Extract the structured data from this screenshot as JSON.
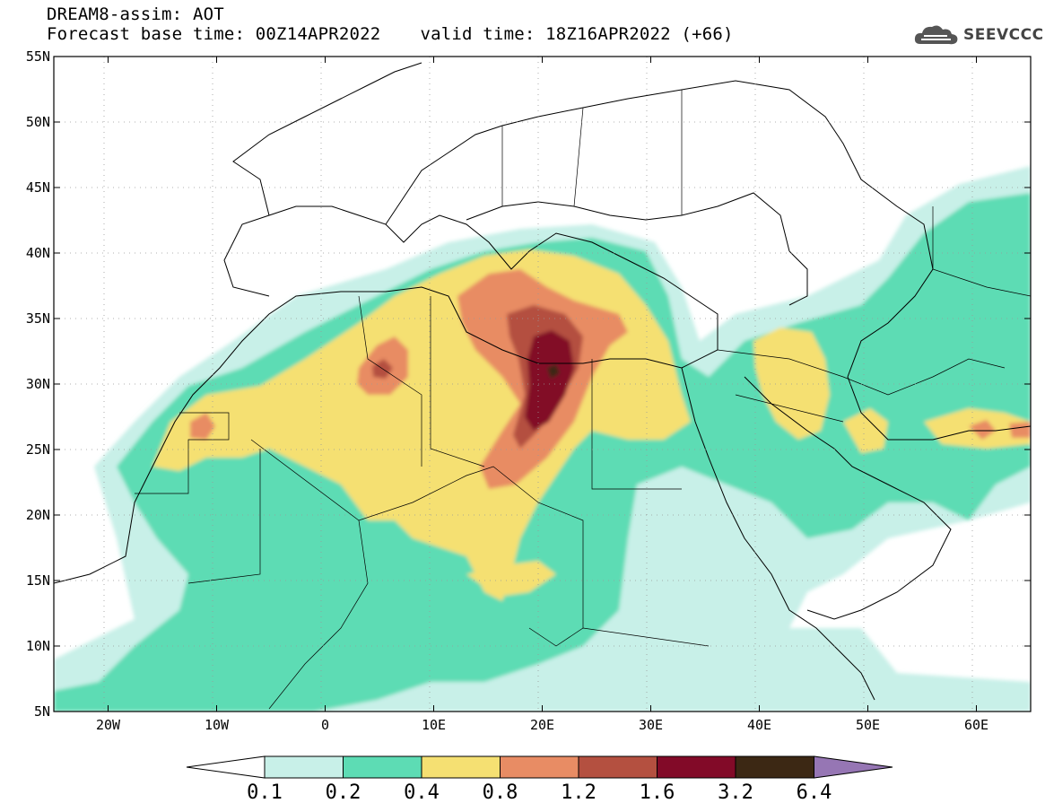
{
  "header": {
    "line1": "DREAM8-assim: AOT",
    "base_time": "Forecast base time: 00Z14APR2022",
    "valid_time": "valid time: 18Z16APR2022 (+66)"
  },
  "logo": {
    "icon": "cloud-logo-icon",
    "text": "SEEVCCC"
  },
  "map": {
    "lat_ticks": [
      "55N",
      "50N",
      "45N",
      "40N",
      "35N",
      "30N",
      "25N",
      "20N",
      "15N",
      "10N",
      "5N"
    ],
    "lon_ticks": [
      "20W",
      "10W",
      "0",
      "10E",
      "20E",
      "30E",
      "40E",
      "50E",
      "60E"
    ],
    "extent": {
      "lon_min": -25,
      "lon_max": 65,
      "lat_min": 5,
      "lat_max": 55
    }
  },
  "colorbar": {
    "labels": [
      "0.1",
      "0.2",
      "0.4",
      "0.8",
      "1.2",
      "1.6",
      "3.2",
      "6.4"
    ],
    "colors": [
      "#ffffff",
      "#c8f0e8",
      "#5ddcb4",
      "#f5e072",
      "#e88c64",
      "#b45040",
      "#820a28",
      "#3c2814",
      "#9676b4"
    ]
  }
}
